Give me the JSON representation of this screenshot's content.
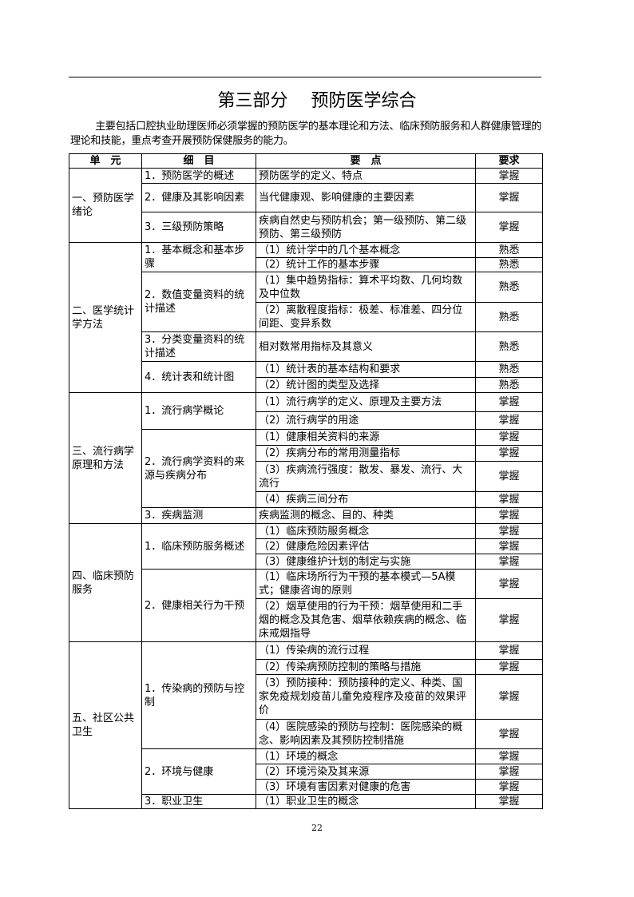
{
  "title": "第三部分　 预防医学综合",
  "intro": "主要包括口腔执业助理医师必须掌握的预防医学的基本理论和方法、临床预防服务和人群健康管理的理论和技能，重点考查开展预防保健服务的能力。",
  "table": {
    "headers": [
      "单　元",
      "细　目",
      "要　点",
      "要求"
    ],
    "units": [
      {
        "name": "一、预防医学绪论",
        "items": [
          {
            "name": "1．预防医学的概述",
            "points": [
              {
                "text": "预防医学的定义、特点",
                "req": "掌握"
              }
            ]
          },
          {
            "name": "2．健康及其影响因素",
            "points": [
              {
                "text": "当代健康观、影响健康的主要因素",
                "req": "掌握"
              }
            ]
          },
          {
            "name": "3．三级预防策略",
            "points": [
              {
                "text": "疾病自然史与预防机会；第一级预防、第二级预防、第三级预防",
                "req": "掌握"
              }
            ]
          }
        ]
      },
      {
        "name": "二、医学统计学方法",
        "items": [
          {
            "name": "1．基本概念和基本步骤",
            "points": [
              {
                "text": "（1）统计学中的几个基本概念",
                "req": "熟悉"
              },
              {
                "text": "（2）统计工作的基本步骤",
                "req": "熟悉"
              }
            ]
          },
          {
            "name": "2．数值变量资料的统计描述",
            "points": [
              {
                "text": "（1）集中趋势指标：算术平均数、几何均数及中位数",
                "req": "熟悉"
              },
              {
                "text": "（2）离散程度指标：极差、标准差、四分位间距、变异系数",
                "req": "熟悉"
              }
            ]
          },
          {
            "name": "3．分类变量资料的统计描述",
            "points": [
              {
                "text": "相对数常用指标及其意义",
                "req": "熟悉"
              }
            ]
          },
          {
            "name": "4．统计表和统计图",
            "points": [
              {
                "text": "（1）统计表的基本结构和要求",
                "req": "熟悉"
              },
              {
                "text": "（2）统计图的类型及选择",
                "req": "熟悉"
              }
            ]
          }
        ]
      },
      {
        "name": "三、流行病学原理和方法",
        "items": [
          {
            "name": "1．流行病学概论",
            "points": [
              {
                "text": "（1）流行病学的定义、原理及主要方法",
                "req": "掌握"
              },
              {
                "text": "（2）流行病学的用途",
                "req": "掌握"
              }
            ]
          },
          {
            "name": "2．流行病学资料的来源与疾病分布",
            "points": [
              {
                "text": "（1）健康相关资料的来源",
                "req": "掌握"
              },
              {
                "text": "（2）疾病分布的常用测量指标",
                "req": "掌握"
              },
              {
                "text": "（3）疾病流行强度：散发、暴发、流行、大流行",
                "req": "掌握"
              },
              {
                "text": "（4）疾病三间分布",
                "req": "掌握"
              }
            ]
          },
          {
            "name": "3．疾病监测",
            "points": [
              {
                "text": "疾病监测的概念、目的、种类",
                "req": "掌握"
              }
            ]
          }
        ]
      },
      {
        "name": "四、临床预防服务",
        "items": [
          {
            "name": "1．临床预防服务概述",
            "points": [
              {
                "text": "（1）临床预防服务概念",
                "req": "掌握"
              },
              {
                "text": "（2）健康危险因素评估",
                "req": "掌握"
              },
              {
                "text": "（3）健康维护计划的制定与实施",
                "req": "掌握"
              }
            ]
          },
          {
            "name": "2．健康相关行为干预",
            "points": [
              {
                "text": "（1）临床场所行为干预的基本模式—5A模式；健康咨询的原则",
                "req": "掌握"
              },
              {
                "text": "（2）烟草使用的行为干预：烟草使用和二手烟的概念及其危害、烟草依赖疾病的概念、临床戒烟指导",
                "req": "掌握"
              }
            ]
          }
        ]
      },
      {
        "name": "五、社区公共卫生",
        "items": [
          {
            "name": "1．传染病的预防与控制",
            "points": [
              {
                "text": "（1）传染病的流行过程",
                "req": "掌握"
              },
              {
                "text": "（2）传染病预防控制的策略与措施",
                "req": "掌握"
              },
              {
                "text": "（3）预防接种：预防接种的定义、种类、国家免疫规划疫苗儿童免疫程序及疫苗的效果评价",
                "req": "掌握"
              },
              {
                "text": "（4）医院感染的预防与控制：医院感染的概念、影响因素及其预防控制措施",
                "req": "掌握"
              }
            ]
          },
          {
            "name": "2．环境与健康",
            "points": [
              {
                "text": "（1）环境的概念",
                "req": "掌握"
              },
              {
                "text": "（2）环境污染及其来源",
                "req": "掌握"
              },
              {
                "text": "（3）环境有害因素对健康的危害",
                "req": "掌握"
              }
            ]
          },
          {
            "name": "3．职业卫生",
            "points": [
              {
                "text": "（1）职业卫生的概念",
                "req": "掌握"
              }
            ]
          }
        ]
      }
    ]
  },
  "page_number": "22"
}
